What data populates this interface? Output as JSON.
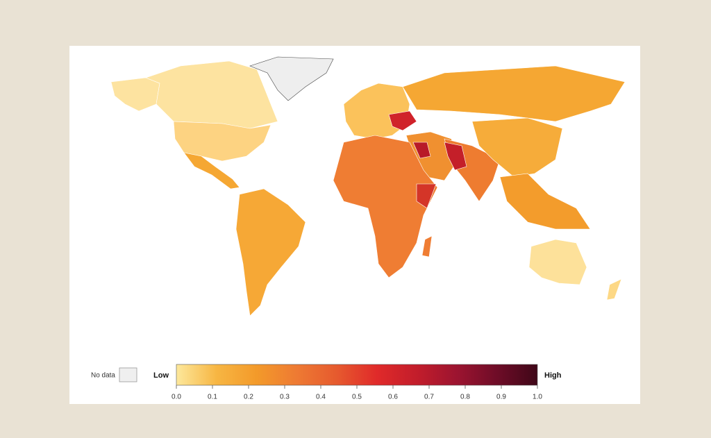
{
  "legend": {
    "no_data": "No data",
    "low": "Low",
    "high": "High",
    "range": [
      0,
      1
    ],
    "ticks": [
      {
        "value": 0,
        "label": "0.0"
      },
      0.1,
      0.2,
      0.3,
      0.4,
      0.5,
      0.6,
      0.7,
      0.8,
      0.9,
      {
        "value": 1,
        "label": "1.0"
      }
    ],
    "colors": [
      "#fde89c",
      "#f7b643",
      "#f39a2a",
      "#ee7a33",
      "#e65a2e",
      "#e02a2a",
      "#c21d2b",
      "#9c1430",
      "#6e0c27",
      "#3f0718"
    ]
  }
}
